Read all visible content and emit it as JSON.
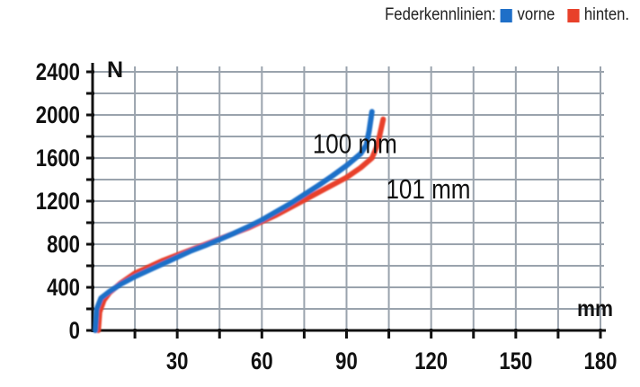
{
  "legend": {
    "label": "Federkennlinien:",
    "entries": [
      {
        "name": "vorne",
        "color": "#1f6fc8"
      },
      {
        "name": "hinten.",
        "color": "#e8402a"
      }
    ]
  },
  "chart_data": {
    "type": "line",
    "title": "",
    "xlabel": "mm",
    "ylabel": "N",
    "xlim": [
      0,
      180
    ],
    "ylim": [
      0,
      2400
    ],
    "x_grid_step": 15,
    "y_grid_step": 200,
    "x_ticks": [
      30,
      60,
      90,
      120,
      150,
      180
    ],
    "y_ticks": [
      0,
      400,
      800,
      1200,
      1600,
      2000,
      2400
    ],
    "grid": true,
    "series": [
      {
        "name": "vorne",
        "color": "#1f6fc8",
        "x": [
          1,
          1.5,
          3,
          6,
          10,
          15,
          20,
          25,
          30,
          35,
          40,
          45,
          50,
          55,
          60,
          65,
          70,
          75,
          80,
          85,
          90,
          95,
          97,
          98,
          99
        ],
        "y": [
          0,
          200,
          300,
          360,
          430,
          500,
          560,
          620,
          680,
          740,
          790,
          845,
          900,
          960,
          1025,
          1100,
          1175,
          1260,
          1345,
          1435,
          1530,
          1640,
          1720,
          1850,
          2030
        ]
      },
      {
        "name": "hinten.",
        "color": "#e8402a",
        "x": [
          2,
          2.5,
          4,
          6,
          10,
          15,
          20,
          25,
          30,
          35,
          40,
          45,
          50,
          55,
          60,
          65,
          70,
          75,
          80,
          85,
          90,
          95,
          99,
          101,
          103
        ],
        "y": [
          0,
          170,
          280,
          350,
          440,
          530,
          590,
          650,
          700,
          750,
          800,
          850,
          900,
          950,
          1010,
          1070,
          1140,
          1210,
          1280,
          1350,
          1420,
          1510,
          1600,
          1720,
          1960
        ]
      }
    ],
    "annotations": [
      {
        "text": "100 mm",
        "x": 78,
        "y": 1730
      },
      {
        "text": "101 mm",
        "x": 104,
        "y": 1310
      }
    ]
  }
}
